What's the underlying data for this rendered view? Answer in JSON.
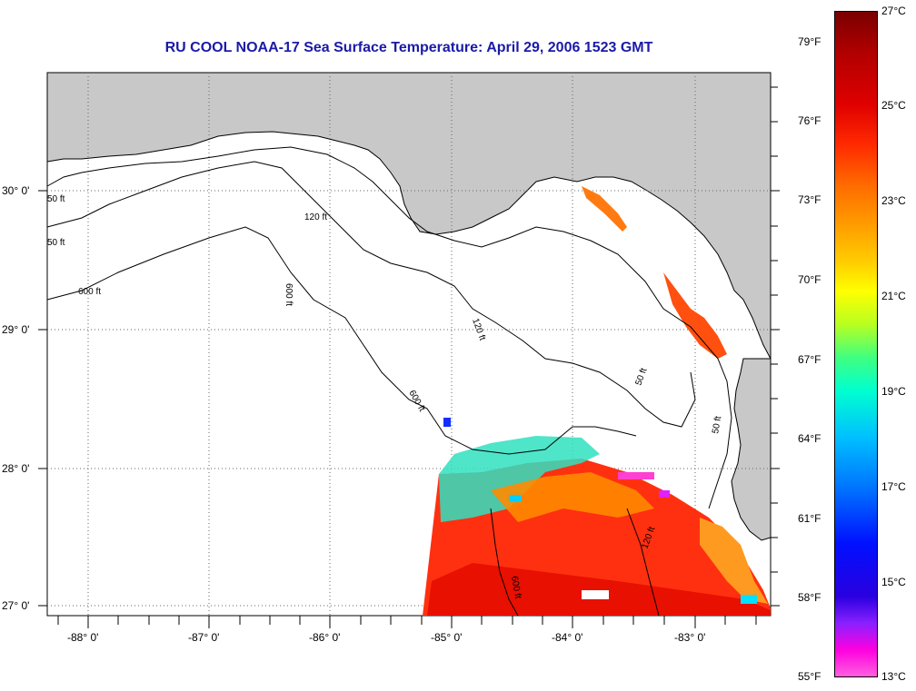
{
  "title": "RU COOL  NOAA-17  Sea Surface Temperature:  April 29, 2006 1523 GMT",
  "lat_labels": [
    "30° 0'",
    "29° 0'",
    "28° 0'",
    "27° 0'"
  ],
  "lon_labels": [
    "-88° 0'",
    "-87° 0'",
    "-86° 0'",
    "-85° 0'",
    "-84° 0'",
    "-83° 0'"
  ],
  "depth_labels": [
    "120 ft",
    "600 ft",
    "600 ft",
    "50 ft",
    "50 ft",
    "120 ft",
    "600 ft",
    "600 ft",
    "120 ft",
    "50 ft",
    "50 ft"
  ],
  "colorbar": {
    "fahrenheit": [
      "79°F",
      "76°F",
      "73°F",
      "70°F",
      "67°F",
      "64°F",
      "61°F",
      "58°F",
      "55°F"
    ],
    "celsius": [
      "27°C",
      "25°C",
      "23°C",
      "21°C",
      "19°C",
      "17°C",
      "15°C",
      "13°C"
    ]
  },
  "colors": {
    "title": "#1a1aa8",
    "land": "#c8c8c8",
    "sst_warm": "#ff3010"
  }
}
